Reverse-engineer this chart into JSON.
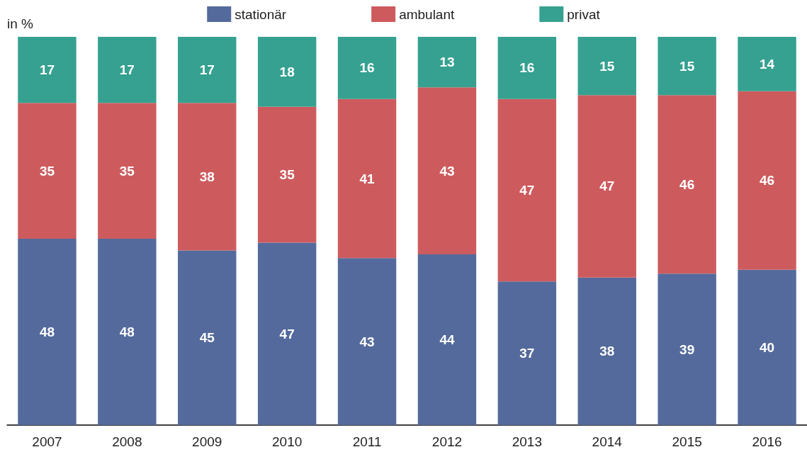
{
  "chart_data": {
    "type": "bar",
    "stacked": true,
    "ylabel": "in %",
    "categories": [
      "2007",
      "2008",
      "2009",
      "2010",
      "2011",
      "2012",
      "2013",
      "2014",
      "2015",
      "2016"
    ],
    "series": [
      {
        "name": "stationär",
        "color": "#546a9c",
        "values": [
          48,
          48,
          45,
          47,
          43,
          44,
          37,
          38,
          39,
          40
        ]
      },
      {
        "name": "ambulant",
        "color": "#cd5b5e",
        "values": [
          35,
          35,
          38,
          35,
          41,
          43,
          47,
          47,
          46,
          46
        ]
      },
      {
        "name": "privat",
        "color": "#36a190",
        "values": [
          17,
          17,
          17,
          18,
          16,
          13,
          16,
          15,
          15,
          14
        ]
      }
    ],
    "data_labels": true,
    "legend": "top",
    "grid": false
  }
}
